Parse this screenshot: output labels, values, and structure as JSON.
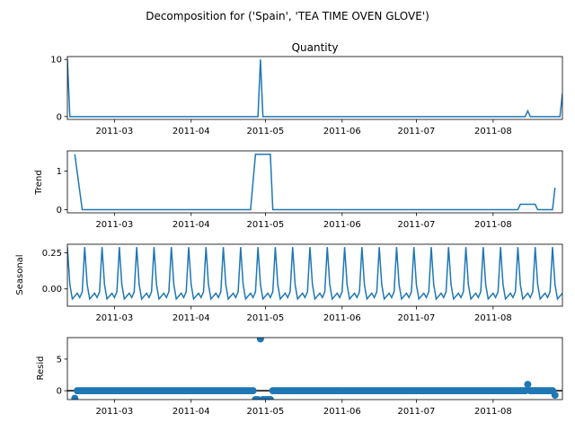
{
  "figure": {
    "suptitle": "Decomposition for ('Spain', 'TEA TIME OVEN GLOVE')"
  },
  "chart_data": [
    {
      "type": "line",
      "panel": "observed",
      "title": "Quantity",
      "ylabel": "",
      "color": "#1f77b4",
      "xlim": [
        "2011-02-10",
        "2011-08-29"
      ],
      "ylim": [
        -0.5,
        10.5
      ],
      "yticks": [
        0,
        10
      ],
      "xticks": [
        "2011-03-01",
        "2011-04-01",
        "2011-05-01",
        "2011-06-01",
        "2011-07-01",
        "2011-08-01"
      ],
      "xtick_labels": [
        "2011-03",
        "2011-04",
        "2011-05",
        "2011-06",
        "2011-07",
        "2011-08"
      ],
      "points": [
        [
          "2011-02-10",
          10
        ],
        [
          "2011-02-11",
          0
        ],
        [
          "2011-04-28",
          0
        ],
        [
          "2011-04-29",
          10
        ],
        [
          "2011-04-30",
          0
        ],
        [
          "2011-08-14",
          0
        ],
        [
          "2011-08-15",
          1
        ],
        [
          "2011-08-16",
          0
        ],
        [
          "2011-08-28",
          0
        ],
        [
          "2011-08-29",
          4
        ]
      ]
    },
    {
      "type": "line",
      "panel": "trend",
      "title": "",
      "ylabel": "Trend",
      "color": "#1f77b4",
      "xlim": [
        "2011-02-10",
        "2011-08-29"
      ],
      "ylim": [
        -0.08,
        1.52
      ],
      "yticks": [
        0,
        1
      ],
      "xticks": [
        "2011-03-01",
        "2011-04-01",
        "2011-05-01",
        "2011-06-01",
        "2011-07-01",
        "2011-08-01"
      ],
      "xtick_labels": [
        "2011-03",
        "2011-04",
        "2011-05",
        "2011-06",
        "2011-07",
        "2011-08"
      ],
      "points": [
        [
          "2011-02-13",
          1.43
        ],
        [
          "2011-02-16",
          0
        ],
        [
          "2011-04-25",
          0
        ],
        [
          "2011-04-27",
          1.43
        ],
        [
          "2011-05-03",
          1.43
        ],
        [
          "2011-05-04",
          0
        ],
        [
          "2011-08-11",
          0
        ],
        [
          "2011-08-12",
          0.14
        ],
        [
          "2011-08-18",
          0.14
        ],
        [
          "2011-08-19",
          0
        ],
        [
          "2011-08-25",
          0
        ],
        [
          "2011-08-26",
          0.57
        ]
      ]
    },
    {
      "type": "line",
      "panel": "seasonal",
      "title": "",
      "ylabel": "Seasonal",
      "color": "#1f77b4",
      "xlim": [
        "2011-02-10",
        "2011-08-29"
      ],
      "ylim": [
        -0.12,
        0.31
      ],
      "yticks": [
        0,
        0.25
      ],
      "ytick_labels": [
        "0.00",
        "0.25"
      ],
      "xticks": [
        "2011-03-01",
        "2011-04-01",
        "2011-05-01",
        "2011-06-01",
        "2011-07-01",
        "2011-08-01"
      ],
      "xtick_labels": [
        "2011-03",
        "2011-04",
        "2011-05",
        "2011-06",
        "2011-07",
        "2011-08"
      ],
      "period_days": 7,
      "start": "2011-02-10",
      "one_period": [
        0.29,
        0.03,
        -0.07,
        -0.05,
        -0.03,
        -0.06,
        -0.02
      ],
      "end": "2011-08-29"
    },
    {
      "type": "scatter",
      "panel": "resid",
      "title": "",
      "ylabel": "Resid",
      "color": "#1f77b4",
      "xlim": [
        "2011-02-10",
        "2011-08-29"
      ],
      "ylim": [
        -1.4,
        8.4
      ],
      "yticks": [
        0,
        5
      ],
      "baseline": 0,
      "xticks": [
        "2011-03-01",
        "2011-04-01",
        "2011-05-01",
        "2011-06-01",
        "2011-07-01",
        "2011-08-01"
      ],
      "xtick_labels": [
        "2011-03",
        "2011-04",
        "2011-05",
        "2011-06",
        "2011-07",
        "2011-08"
      ],
      "start": "2011-02-13",
      "end": "2011-08-26",
      "default_value": 0,
      "exceptions": [
        [
          "2011-02-13",
          -1.2
        ],
        [
          "2011-04-27",
          -1.4
        ],
        [
          "2011-04-28",
          -1.4
        ],
        [
          "2011-04-29",
          8.2
        ],
        [
          "2011-04-30",
          -1.4
        ],
        [
          "2011-05-01",
          -1.4
        ],
        [
          "2011-05-02",
          -1.4
        ],
        [
          "2011-05-03",
          -1.4
        ],
        [
          "2011-08-15",
          1.0
        ],
        [
          "2011-08-26",
          -0.7
        ]
      ]
    }
  ]
}
